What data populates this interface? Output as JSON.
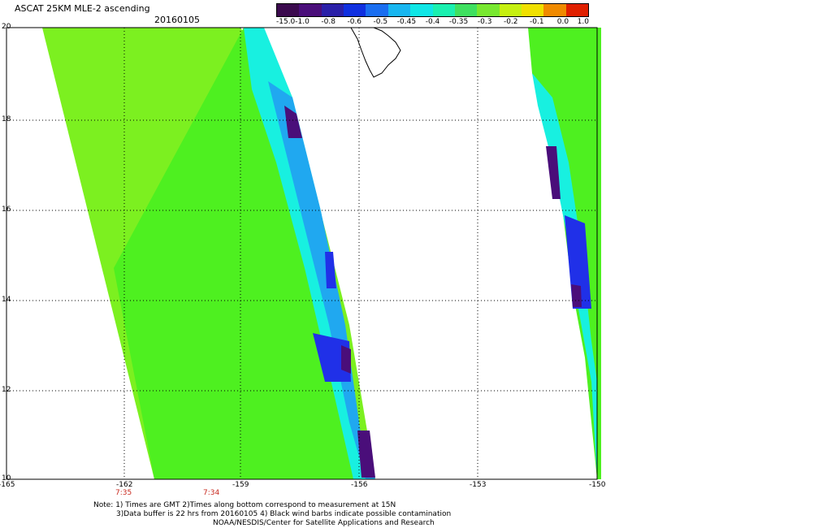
{
  "header": {
    "title": "ASCAT 25KM MLE-2 ascending",
    "date": "20160105"
  },
  "colorbar": {
    "tick_labels": [
      "-15.0",
      "-1.0",
      "-0.8",
      "-0.6",
      "-0.5",
      "-0.45",
      "-0.4",
      "-0.35",
      "-0.3",
      "-0.2",
      "-0.1",
      "0.0",
      "1.0"
    ],
    "colors": [
      "#3b0a4e",
      "#4a0e7a",
      "#2a20a8",
      "#1030e0",
      "#1a6ef0",
      "#18b6f0",
      "#10e6e6",
      "#1af0b0",
      "#3fe060",
      "#78e830",
      "#c6f010",
      "#f0e000",
      "#f08a00",
      "#e02000"
    ]
  },
  "map": {
    "lat_labels": [
      "20",
      "18",
      "16",
      "14",
      "12",
      "10"
    ],
    "lon_labels": [
      "-165",
      "-162",
      "-159",
      "-156",
      "-153",
      "-150"
    ],
    "time_labels": [
      "7:35",
      "7:34"
    ],
    "colors": {
      "green_bright": "#7cf020",
      "green": "#4ef020",
      "cyan": "#18f0e0",
      "light_blue": "#20a8f0",
      "blue": "#2030e8",
      "purple": "#4a0e7a"
    }
  },
  "footer": {
    "line1": "Note: 1) Times are GMT 2)Times along bottom correspond to measurement at 15N",
    "line2": "3)Data buffer is 22 hrs from 20160105 4) Black wind barbs indicate possible contamination",
    "line3": "NOAA/NESDIS/Center for Satellite Applications and Research"
  }
}
